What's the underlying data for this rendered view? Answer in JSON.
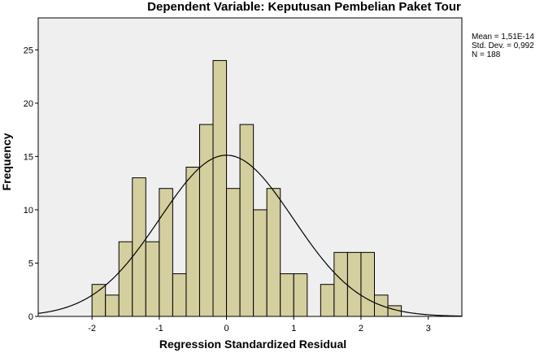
{
  "chart_data": {
    "type": "bar",
    "title": "Dependent Variable: Keputusan Pembelian Paket Tour",
    "xlabel": "Regression Standardized Residual",
    "ylabel": "Frequency",
    "xlim": [
      -2.8,
      3.5
    ],
    "ylim": [
      0,
      28
    ],
    "x_ticks": [
      "-2",
      "-1",
      "0",
      "1",
      "2",
      "3"
    ],
    "y_ticks": [
      "0",
      "5",
      "10",
      "15",
      "20",
      "25"
    ],
    "bin_width": 0.2,
    "bins": [
      {
        "left": -2.0,
        "count": 3
      },
      {
        "left": -1.8,
        "count": 2
      },
      {
        "left": -1.6,
        "count": 7
      },
      {
        "left": -1.4,
        "count": 13
      },
      {
        "left": -1.2,
        "count": 7
      },
      {
        "left": -1.0,
        "count": 12
      },
      {
        "left": -0.8,
        "count": 4
      },
      {
        "left": -0.6,
        "count": 14
      },
      {
        "left": -0.4,
        "count": 18
      },
      {
        "left": -0.2,
        "count": 24
      },
      {
        "left": 0.0,
        "count": 12
      },
      {
        "left": 0.2,
        "count": 18
      },
      {
        "left": 0.4,
        "count": 10
      },
      {
        "left": 0.6,
        "count": 12
      },
      {
        "left": 0.8,
        "count": 4
      },
      {
        "left": 1.0,
        "count": 4
      },
      {
        "left": 1.4,
        "count": 3
      },
      {
        "left": 1.6,
        "count": 6
      },
      {
        "left": 1.8,
        "count": 6
      },
      {
        "left": 2.0,
        "count": 6
      },
      {
        "left": 2.2,
        "count": 2
      },
      {
        "left": 2.4,
        "count": 1
      }
    ],
    "normal_curve": {
      "mean": 0.0,
      "std": 0.992,
      "n": 188
    },
    "grid": false,
    "colors": {
      "bar_fill": "#d4cf9f",
      "bar_stroke": "#000000",
      "plot_background": "#efefef",
      "curve": "#000000"
    }
  },
  "stats": {
    "mean_line": "Mean = 1,51E-14",
    "std_line": "Std. Dev. = 0,992",
    "n_line": "N = 188"
  }
}
